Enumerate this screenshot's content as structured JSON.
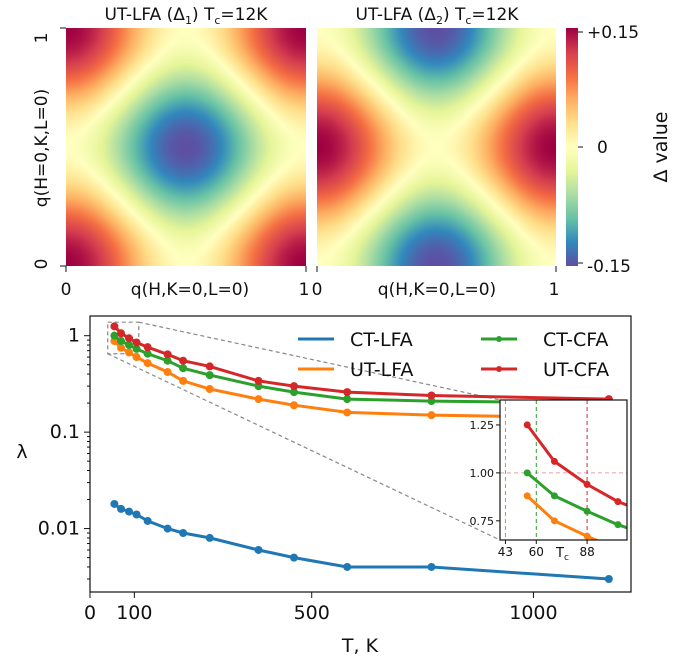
{
  "heatmaps": {
    "panel1_title": "UT-LFA (Δ",
    "panel1_title_sub": "1",
    "panel1_title_tail": ") T",
    "panel1_title_tsub": "c",
    "panel1_title_end": "=12K",
    "panel2_title": "UT-LFA (Δ",
    "panel2_title_sub": "2",
    "panel2_title_tail": ") T",
    "panel2_title_tsub": "c",
    "panel2_title_end": "=12K",
    "ylabel": "q(H=0,K,L=0)",
    "xlabel": "q(H,K=0,L=0)",
    "panel1_xticks": [
      "0",
      "1"
    ],
    "panel2_xticks": [
      "0",
      "1"
    ],
    "yticks": [
      "0",
      "1"
    ],
    "colorbar_label": "Δ value",
    "colorbar_ticks": [
      "+0.15",
      "0",
      "-0.15"
    ]
  },
  "chart_data": {
    "type": "line",
    "xlabel": "T, K",
    "ylabel": "λ",
    "yscale": "log",
    "xlim": [
      0,
      1220
    ],
    "ylim": [
      0.0022,
      1.6
    ],
    "xticks": [
      {
        "v": 0,
        "label": "0"
      },
      {
        "v": 100,
        "label": "100"
      },
      {
        "v": 500,
        "label": "500"
      },
      {
        "v": 1000,
        "label": "1000"
      }
    ],
    "yticks": [
      {
        "v": 1,
        "label": "1"
      },
      {
        "v": 0.1,
        "label": "0.1"
      },
      {
        "v": 0.01,
        "label": "0.01"
      }
    ],
    "legend_position": "top-right",
    "series": [
      {
        "name": "CT-LFA",
        "color": "#1f77b4",
        "x": [
          55,
          70,
          88,
          105,
          130,
          175,
          210,
          270,
          380,
          460,
          580,
          770,
          1170
        ],
        "y": [
          0.018,
          0.016,
          0.015,
          0.014,
          0.012,
          0.01,
          0.009,
          0.008,
          0.006,
          0.005,
          0.004,
          0.004,
          0.003
        ]
      },
      {
        "name": "UT-LFA",
        "color": "#ff7f0e",
        "x": [
          55,
          70,
          88,
          105,
          130,
          175,
          210,
          270,
          380,
          460,
          580,
          770,
          1170
        ],
        "y": [
          0.88,
          0.75,
          0.67,
          0.6,
          0.52,
          0.42,
          0.34,
          0.28,
          0.22,
          0.19,
          0.16,
          0.15,
          0.14
        ]
      },
      {
        "name": "CT-CFA",
        "color": "#2ca02c",
        "x": [
          55,
          70,
          88,
          105,
          130,
          175,
          210,
          270,
          380,
          460,
          580,
          770,
          1170
        ],
        "y": [
          1.0,
          0.88,
          0.8,
          0.73,
          0.65,
          0.55,
          0.46,
          0.39,
          0.3,
          0.26,
          0.22,
          0.21,
          0.2
        ]
      },
      {
        "name": "UT-CFA",
        "color": "#d62728",
        "x": [
          55,
          70,
          88,
          105,
          130,
          175,
          210,
          270,
          380,
          460,
          580,
          770,
          1170
        ],
        "y": [
          1.25,
          1.06,
          0.94,
          0.85,
          0.76,
          0.64,
          0.55,
          0.48,
          0.34,
          0.3,
          0.26,
          0.24,
          0.22
        ]
      }
    ],
    "inset": {
      "xlim": [
        40,
        110
      ],
      "ylim": [
        0.65,
        1.38
      ],
      "yticks": [
        {
          "v": 1.25,
          "label": "1.25"
        },
        {
          "v": 1.0,
          "label": "1.00"
        },
        {
          "v": 0.75,
          "label": "0.75"
        }
      ],
      "xticks": [
        {
          "v": 43,
          "label": "43"
        },
        {
          "v": 60,
          "label": "60"
        },
        {
          "v": 88,
          "label": "88"
        }
      ],
      "xlabel": "T",
      "xlabel_sub": "c",
      "hline": 1.0,
      "vlines": [
        {
          "v": 43,
          "color": "#ff7f0e"
        },
        {
          "v": 60,
          "color": "#2ca02c"
        },
        {
          "v": 88,
          "color": "#d62728"
        }
      ]
    }
  }
}
